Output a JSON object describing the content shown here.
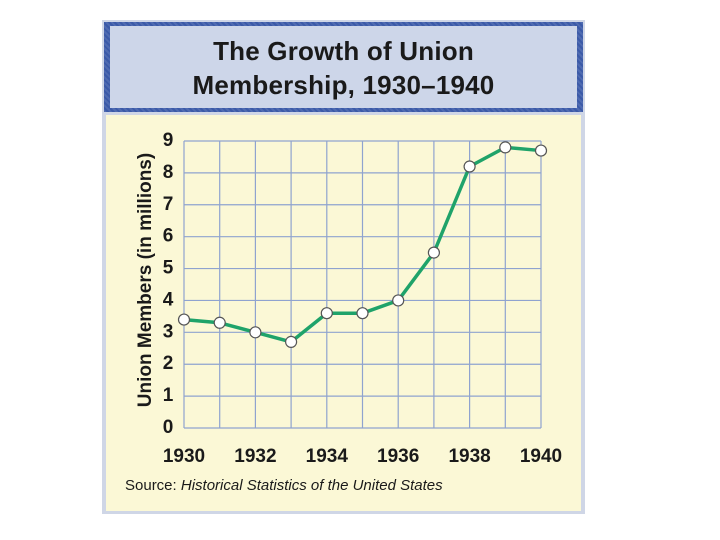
{
  "colors": {
    "header_blue": "#3b5aa8",
    "panel_bg": "#fbf8d6",
    "grid": "#8fa3cf",
    "line": "#1fa36a",
    "marker_fill": "#ffffff"
  },
  "title": {
    "line1": "The Growth of Union",
    "line2": "Membership, 1930–1940"
  },
  "source": {
    "prefix": "Source: ",
    "title": "Historical Statistics of the United States"
  },
  "chart_data": {
    "type": "line",
    "title": "The Growth of Union Membership, 1930–1940",
    "xlabel": "",
    "ylabel": "Union Members (in millions)",
    "x": [
      1930,
      1931,
      1932,
      1933,
      1934,
      1935,
      1936,
      1937,
      1938,
      1939,
      1940
    ],
    "values": [
      3.4,
      3.3,
      3.0,
      2.7,
      3.6,
      3.6,
      4.0,
      5.5,
      8.2,
      8.8,
      8.7
    ],
    "xlim": [
      1930,
      1940
    ],
    "ylim": [
      0,
      9
    ],
    "x_tick_labels": [
      "1930",
      "1932",
      "1934",
      "1936",
      "1938",
      "1940"
    ],
    "y_tick_labels": [
      "0",
      "1",
      "2",
      "3",
      "4",
      "5",
      "6",
      "7",
      "8",
      "9"
    ],
    "grid": true,
    "legend": "none"
  }
}
